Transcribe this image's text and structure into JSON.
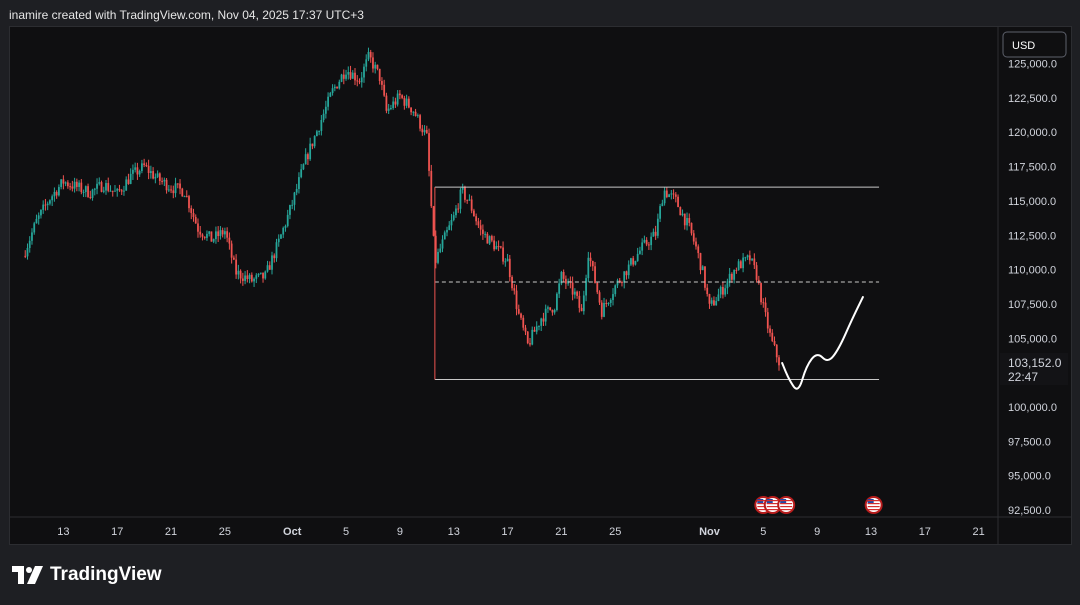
{
  "header": {
    "attribution": "inamire created with TradingView.com, Nov 04, 2025 17:37 UTC+3"
  },
  "footer": {
    "brand": "TradingView"
  },
  "colors": {
    "up": "#26a69a",
    "down": "#ef5350",
    "background": "#0f0f11",
    "page": "#1e1f23",
    "drawing": "#ffffff"
  },
  "icons": {
    "event_flag": "us-flag-icon",
    "logo": "tradingview-logo-icon"
  },
  "chart_data": {
    "type": "candlestick",
    "currency": "USD",
    "ylim": [
      91500,
      126500
    ],
    "y_ticks": [
      {
        "value": 125000,
        "label": "125,000.0"
      },
      {
        "value": 122500,
        "label": "122,500.0"
      },
      {
        "value": 120000,
        "label": "120,000.0"
      },
      {
        "value": 117500,
        "label": "117,500.0"
      },
      {
        "value": 115000,
        "label": "115,000.0"
      },
      {
        "value": 112500,
        "label": "112,500.0"
      },
      {
        "value": 110000,
        "label": "110,000.0"
      },
      {
        "value": 107500,
        "label": "107,500.0"
      },
      {
        "value": 105000,
        "label": "105,000.0"
      },
      {
        "value": 100000,
        "label": "100,000.0"
      },
      {
        "value": 97500,
        "label": "97,500.0"
      },
      {
        "value": 95000,
        "label": "95,000.0"
      },
      {
        "value": 92500,
        "label": "92,500.0"
      }
    ],
    "x_ticks": [
      {
        "day": 13,
        "label": "13"
      },
      {
        "day": 17,
        "label": "17"
      },
      {
        "day": 21,
        "label": "21"
      },
      {
        "day": 25,
        "label": "25"
      },
      {
        "day": 30,
        "label": "Oct"
      },
      {
        "day": 34,
        "label": "5"
      },
      {
        "day": 38,
        "label": "9"
      },
      {
        "day": 42,
        "label": "13"
      },
      {
        "day": 46,
        "label": "17"
      },
      {
        "day": 50,
        "label": "21"
      },
      {
        "day": 54,
        "label": "25"
      },
      {
        "day": 61,
        "label": "Nov"
      },
      {
        "day": 65,
        "label": "5"
      },
      {
        "day": 69,
        "label": "9"
      },
      {
        "day": 73,
        "label": "13"
      },
      {
        "day": 77,
        "label": "17"
      },
      {
        "day": 81,
        "label": "21"
      }
    ],
    "price_series": [
      [
        10.0,
        111000
      ],
      [
        11.0,
        113500
      ],
      [
        12.0,
        115200
      ],
      [
        13.0,
        116400
      ],
      [
        14.0,
        116000
      ],
      [
        15.0,
        115600
      ],
      [
        16.0,
        116200
      ],
      [
        17.0,
        115500
      ],
      [
        18.0,
        116800
      ],
      [
        19.0,
        117500
      ],
      [
        20.0,
        116600
      ],
      [
        21.0,
        116000
      ],
      [
        22.0,
        115700
      ],
      [
        23.0,
        113000
      ],
      [
        24.0,
        112200
      ],
      [
        25.0,
        112800
      ],
      [
        25.8,
        109800
      ],
      [
        27.0,
        109200
      ],
      [
        28.0,
        109500
      ],
      [
        29.0,
        112000
      ],
      [
        30.0,
        114800
      ],
      [
        31.0,
        118000
      ],
      [
        32.0,
        120500
      ],
      [
        33.0,
        123000
      ],
      [
        34.0,
        124600
      ],
      [
        35.0,
        123800
      ],
      [
        35.7,
        125500
      ],
      [
        36.5,
        124000
      ],
      [
        37.0,
        121500
      ],
      [
        38.0,
        122600
      ],
      [
        39.0,
        121600
      ],
      [
        40.0,
        119600
      ],
      [
        40.6,
        110500
      ],
      [
        41.2,
        112000
      ],
      [
        42.0,
        113800
      ],
      [
        42.6,
        115700
      ],
      [
        43.2,
        114800
      ],
      [
        44.0,
        112800
      ],
      [
        45.0,
        111800
      ],
      [
        46.0,
        110600
      ],
      [
        46.8,
        106800
      ],
      [
        47.5,
        104500
      ],
      [
        48.5,
        106500
      ],
      [
        49.5,
        107400
      ],
      [
        50.0,
        109500
      ],
      [
        51.0,
        108200
      ],
      [
        51.5,
        106800
      ],
      [
        52.0,
        111300
      ],
      [
        53.0,
        107000
      ],
      [
        54.0,
        108800
      ],
      [
        55.0,
        110200
      ],
      [
        56.0,
        111600
      ],
      [
        57.0,
        112600
      ],
      [
        57.6,
        115800
      ],
      [
        58.5,
        115000
      ],
      [
        59.5,
        113000
      ],
      [
        60.0,
        111600
      ],
      [
        60.5,
        109800
      ],
      [
        61.0,
        107200
      ],
      [
        62.0,
        108600
      ],
      [
        63.0,
        110200
      ],
      [
        64.0,
        110800
      ],
      [
        64.5,
        109600
      ],
      [
        65.0,
        107200
      ],
      [
        65.6,
        104800
      ],
      [
        66.2,
        103200
      ]
    ],
    "annotations": {
      "range_high": 116000,
      "range_low": 102000,
      "range_mid": 109100,
      "range_start_day": 40.6,
      "range_end_day": 73.6,
      "projection": [
        [
          66.4,
          103200
        ],
        [
          66.9,
          102000
        ],
        [
          67.6,
          101000
        ],
        [
          68.2,
          103000
        ],
        [
          69.0,
          104000
        ],
        [
          69.8,
          103200
        ],
        [
          70.6,
          104200
        ],
        [
          71.6,
          106400
        ],
        [
          72.4,
          108000
        ]
      ]
    },
    "last_price": "103,152.0",
    "countdown": "22:47",
    "event_days": [
      65.0,
      65.7,
      66.7,
      73.2
    ]
  }
}
